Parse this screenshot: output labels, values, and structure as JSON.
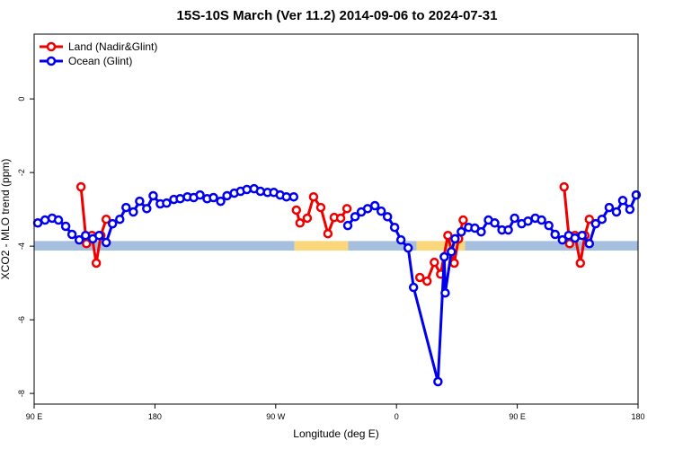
{
  "chart_data": {
    "type": "line",
    "title": "15S-10S March (Ver 11.2)   2014-09-06 to 2024-07-31",
    "x_label": "Longitude (deg E)",
    "y_label": "XCO2 - MLO trend (ppm)",
    "xlim": [
      90,
      540
    ],
    "ylim": [
      -8.29,
      1.76
    ],
    "xticks": [
      {
        "value": 90,
        "label": "90 E"
      },
      {
        "value": 180,
        "label": "180"
      },
      {
        "value": 270,
        "label": "90 W"
      },
      {
        "value": 360,
        "label": "0"
      },
      {
        "value": 450,
        "label": "90 E"
      },
      {
        "value": 540,
        "label": "180"
      }
    ],
    "yticks": [
      0,
      -2,
      -4,
      -6,
      -8
    ],
    "legend": "top-left",
    "band_y": [
      -4.12,
      -3.86
    ],
    "bands": [
      {
        "x0": 90,
        "x1": 284,
        "color": "#a7bfdf"
      },
      {
        "x0": 284,
        "x1": 324,
        "color": "#fbd77c"
      },
      {
        "x0": 324,
        "x1": 375,
        "color": "#a7bfdf"
      },
      {
        "x0": 375,
        "x1": 411,
        "color": "#fbd77c"
      },
      {
        "x0": 411,
        "x1": 540,
        "color": "#a7bfdf"
      }
    ],
    "series": [
      {
        "name": "Land (Nadir&Glint)",
        "color": "#ee0000",
        "x": [
          124.9,
          129.0,
          133.0,
          136.3,
          139.7,
          143.7,
          null,
          285.4,
          288.1,
          293.5,
          298.2,
          303.6,
          308.9,
          313.6,
          318.4,
          323.1,
          null,
          377.4,
          382.8,
          388.2,
          392.9,
          398.3,
          403.0,
          406.3,
          409.7,
          null,
          484.9,
          489.0,
          493.0,
          497.0,
          500.4,
          503.7
        ],
        "values": [
          -2.39,
          -3.93,
          -3.71,
          -4.46,
          -3.71,
          -3.27,
          null,
          -3.02,
          -3.37,
          -3.24,
          -2.66,
          -2.95,
          -3.66,
          -3.22,
          -3.24,
          -2.98,
          null,
          -4.85,
          -4.95,
          -4.44,
          -4.76,
          -3.71,
          -4.46,
          -3.8,
          -3.29,
          null,
          -2.39,
          -3.93,
          -3.71,
          -4.46,
          -3.71,
          -3.27
        ]
      },
      {
        "name": "Ocean (Glint)",
        "color": "#0000ee",
        "x": [
          92.7,
          98.1,
          103.4,
          108.1,
          113.5,
          118.2,
          123.6,
          128.3,
          133.7,
          138.4,
          143.7,
          148.4,
          153.8,
          158.5,
          163.9,
          168.6,
          173.9,
          178.7,
          184.0,
          188.7,
          194.1,
          198.8,
          204.2,
          208.9,
          213.6,
          218.9,
          223.6,
          229.0,
          233.7,
          239.1,
          243.8,
          248.5,
          253.9,
          258.6,
          263.9,
          268.6,
          273.3,
          278.0,
          283.4,
          null,
          323.7,
          329.1,
          333.8,
          338.5,
          343.9,
          348.6,
          353.3,
          358.6,
          363.3,
          368.7,
          372.7,
          390.9,
          395.6,
          396.3,
          400.9,
          403.6,
          408.3,
          413.7,
          418.4,
          423.1,
          428.5,
          433.2,
          438.6,
          443.3,
          448.0,
          453.3,
          458.0,
          463.4,
          468.1,
          473.5,
          478.2,
          483.6,
          488.3,
          493.0,
          498.3,
          503.7,
          508.4,
          513.1,
          518.5,
          523.9,
          528.6,
          533.9,
          538.6
        ],
        "values": [
          -3.37,
          -3.29,
          -3.24,
          -3.29,
          -3.46,
          -3.68,
          -3.83,
          -3.71,
          -3.8,
          -3.71,
          -3.9,
          -3.39,
          -3.27,
          -2.95,
          -3.07,
          -2.78,
          -2.98,
          -2.63,
          -2.85,
          -2.83,
          -2.73,
          -2.71,
          -2.66,
          -2.68,
          -2.61,
          -2.71,
          -2.68,
          -2.78,
          -2.63,
          -2.56,
          -2.51,
          -2.46,
          -2.44,
          -2.51,
          -2.54,
          -2.54,
          -2.61,
          -2.66,
          -2.66,
          null,
          -3.44,
          -3.2,
          -3.07,
          -2.98,
          -2.9,
          -3.05,
          -3.2,
          -3.49,
          -3.83,
          -4.05,
          -5.12,
          -7.68,
          -4.29,
          -5.27,
          -4.15,
          -3.8,
          -3.61,
          -3.49,
          -3.51,
          -3.61,
          -3.29,
          -3.37,
          -3.56,
          -3.56,
          -3.24,
          -3.39,
          -3.32,
          -3.24,
          -3.29,
          -3.44,
          -3.68,
          -3.83,
          -3.71,
          -3.78,
          -3.71,
          -3.93,
          -3.39,
          -3.27,
          -2.95,
          -3.07,
          -2.76,
          -3.0,
          -2.61
        ]
      }
    ]
  }
}
